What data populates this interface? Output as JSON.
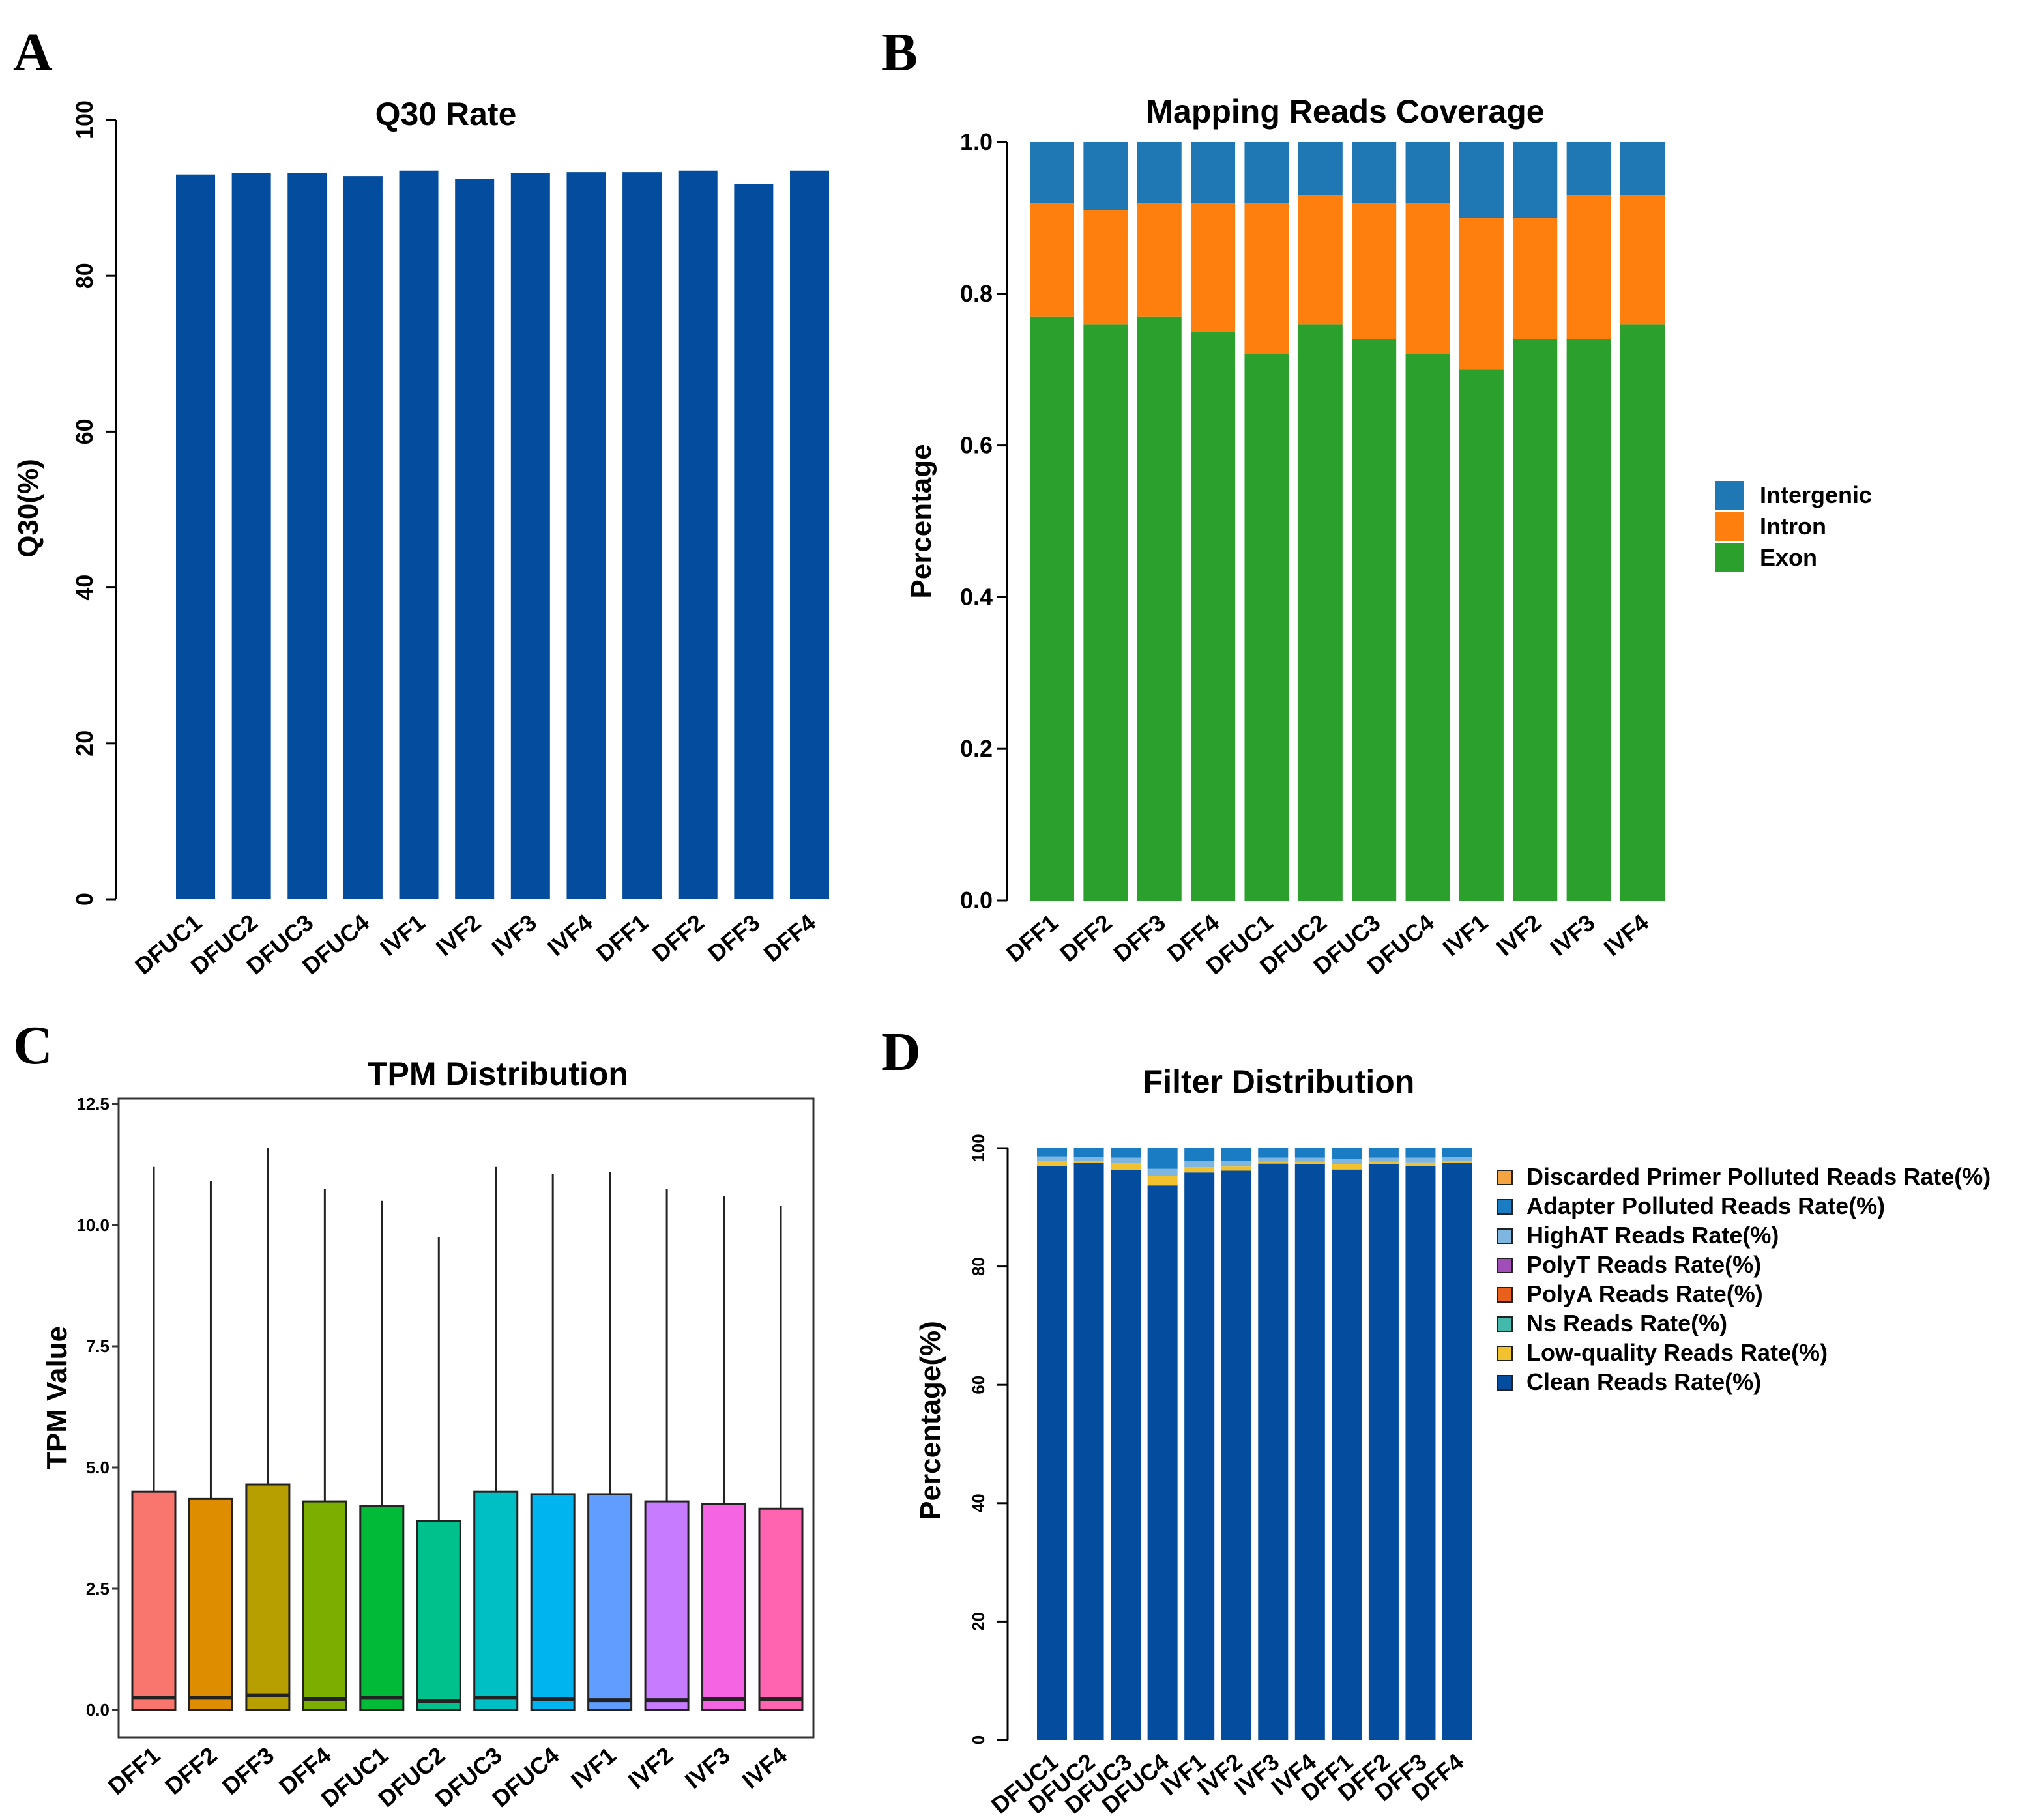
{
  "panels": {
    "a": {
      "letter": "A"
    },
    "b": {
      "letter": "B"
    },
    "c": {
      "letter": "C"
    },
    "d": {
      "letter": "D"
    }
  },
  "chart_data": [
    {
      "id": "q30",
      "type": "bar",
      "title": "Q30 Rate",
      "xlabel": "",
      "ylabel": "Q30(%)",
      "ylim": [
        0,
        100
      ],
      "yticks": [
        "0",
        "20",
        "40",
        "60",
        "80",
        "100"
      ],
      "categories": [
        "DFUC1",
        "DFUC2",
        "DFUC3",
        "DFUC4",
        "IVF1",
        "IVF2",
        "IVF3",
        "IVF4",
        "DFF1",
        "DFF2",
        "DFF3",
        "DFF4"
      ],
      "values": [
        93.0,
        93.2,
        93.2,
        92.8,
        93.5,
        92.4,
        93.2,
        93.3,
        93.3,
        93.5,
        91.8,
        93.5
      ],
      "color": "#034C9E"
    },
    {
      "id": "coverage",
      "type": "bar",
      "stacked": true,
      "title": "Mapping Reads Coverage",
      "xlabel": "",
      "ylabel": "Percentage",
      "ylim": [
        0,
        1
      ],
      "yticks": [
        "0.0",
        "0.2",
        "0.4",
        "0.6",
        "0.8",
        "1.0"
      ],
      "categories": [
        "DFF1",
        "DFF2",
        "DFF3",
        "DFF4",
        "DFUC1",
        "DFUC2",
        "DFUC3",
        "DFUC4",
        "IVF1",
        "IVF2",
        "IVF3",
        "IVF4"
      ],
      "series": [
        {
          "name": "Exon",
          "color": "#2CA02C",
          "values": [
            0.77,
            0.76,
            0.77,
            0.75,
            0.72,
            0.76,
            0.74,
            0.72,
            0.7,
            0.74,
            0.74,
            0.76
          ]
        },
        {
          "name": "Intron",
          "color": "#FF7F0E",
          "values": [
            0.15,
            0.15,
            0.15,
            0.17,
            0.2,
            0.17,
            0.18,
            0.2,
            0.2,
            0.16,
            0.19,
            0.17
          ]
        },
        {
          "name": "Intergenic",
          "color": "#1F77B4",
          "values": [
            0.08,
            0.09,
            0.08,
            0.08,
            0.08,
            0.07,
            0.08,
            0.08,
            0.1,
            0.1,
            0.07,
            0.07
          ]
        }
      ],
      "legend": [
        "Intergenic",
        "Intron",
        "Exon"
      ],
      "legend_position": "right"
    },
    {
      "id": "tpm",
      "type": "box",
      "title": "TPM Distribution",
      "xlabel": "",
      "ylabel": "TPM Value",
      "ylim": [
        0,
        12.5
      ],
      "yticks": [
        "0.0",
        "2.5",
        "5.0",
        "7.5",
        "10.0",
        "12.5"
      ],
      "categories": [
        "DFF1",
        "DFF2",
        "DFF3",
        "DFF4",
        "DFUC1",
        "DFUC2",
        "DFUC3",
        "DFUC4",
        "IVF1",
        "IVF2",
        "IVF3",
        "IVF4"
      ],
      "boxes": [
        {
          "min": 0,
          "q1": 0,
          "median": 0.25,
          "q3": 4.5,
          "max": 11.2,
          "color": "#F8766D"
        },
        {
          "min": 0,
          "q1": 0,
          "median": 0.25,
          "q3": 4.35,
          "max": 10.9,
          "color": "#DE8C00"
        },
        {
          "min": 0,
          "q1": 0,
          "median": 0.3,
          "q3": 4.65,
          "max": 11.6,
          "color": "#B79F00"
        },
        {
          "min": 0,
          "q1": 0,
          "median": 0.22,
          "q3": 4.3,
          "max": 10.75,
          "color": "#7CAE00"
        },
        {
          "min": 0,
          "q1": 0,
          "median": 0.25,
          "q3": 4.2,
          "max": 10.5,
          "color": "#00BA38"
        },
        {
          "min": 0,
          "q1": 0,
          "median": 0.18,
          "q3": 3.9,
          "max": 9.75,
          "color": "#00C08B"
        },
        {
          "min": 0,
          "q1": 0,
          "median": 0.25,
          "q3": 4.5,
          "max": 11.2,
          "color": "#00BFC4"
        },
        {
          "min": 0,
          "q1": 0,
          "median": 0.22,
          "q3": 4.45,
          "max": 11.05,
          "color": "#00B4F0"
        },
        {
          "min": 0,
          "q1": 0,
          "median": 0.2,
          "q3": 4.45,
          "max": 11.1,
          "color": "#619CFF"
        },
        {
          "min": 0,
          "q1": 0,
          "median": 0.2,
          "q3": 4.3,
          "max": 10.75,
          "color": "#C77CFF"
        },
        {
          "min": 0,
          "q1": 0,
          "median": 0.22,
          "q3": 4.25,
          "max": 10.6,
          "color": "#F564E3"
        },
        {
          "min": 0,
          "q1": 0,
          "median": 0.22,
          "q3": 4.15,
          "max": 10.4,
          "color": "#FF64B0"
        }
      ]
    },
    {
      "id": "filter",
      "type": "bar",
      "stacked": true,
      "title": "Filter Distribution",
      "xlabel": "",
      "ylabel": "Percentage(%)",
      "ylim": [
        0,
        100
      ],
      "yticks": [
        "0",
        "20",
        "40",
        "60",
        "80",
        "100"
      ],
      "categories": [
        "DFUC1",
        "DFUC2",
        "DFUC3",
        "DFUC4",
        "IVF1",
        "IVF2",
        "IVF3",
        "IVF4",
        "DFF1",
        "DFF2",
        "DFF3",
        "DFF4"
      ],
      "series": [
        {
          "name": "Clean Reads Rate(%)",
          "color": "#034C9E",
          "values": [
            97.0,
            97.5,
            96.3,
            93.7,
            95.9,
            96.2,
            97.4,
            97.3,
            96.4,
            97.3,
            97.0,
            97.5
          ]
        },
        {
          "name": "Low-quality Reads Rate(%)",
          "color": "#F2C12E",
          "values": [
            0.8,
            0.4,
            1.2,
            1.6,
            0.9,
            0.7,
            0.3,
            0.4,
            0.9,
            0.4,
            0.6,
            0.4
          ]
        },
        {
          "name": "Ns Reads Rate(%)",
          "color": "#45B8AC",
          "values": [
            0.0,
            0.0,
            0.0,
            0.0,
            0.0,
            0.0,
            0.0,
            0.0,
            0.0,
            0.0,
            0.0,
            0.0
          ]
        },
        {
          "name": "PolyA Reads Rate(%)",
          "color": "#E8601C",
          "values": [
            0.0,
            0.0,
            0.0,
            0.0,
            0.0,
            0.0,
            0.0,
            0.0,
            0.0,
            0.0,
            0.0,
            0.0
          ]
        },
        {
          "name": "PolyT Reads Rate(%)",
          "color": "#A14EB8",
          "values": [
            0.0,
            0.0,
            0.0,
            0.0,
            0.0,
            0.0,
            0.0,
            0.0,
            0.0,
            0.0,
            0.0,
            0.0
          ]
        },
        {
          "name": "HighAT Reads Rate(%)",
          "color": "#7FB6E0",
          "values": [
            0.8,
            0.6,
            0.9,
            1.2,
            1.0,
            1.0,
            0.7,
            0.7,
            0.9,
            0.7,
            0.8,
            0.6
          ]
        },
        {
          "name": "Adapter Polluted Reads Rate(%)",
          "color": "#1A7DC4",
          "values": [
            1.4,
            1.5,
            1.6,
            3.5,
            2.2,
            2.1,
            1.6,
            1.6,
            1.8,
            1.6,
            1.6,
            1.5
          ]
        },
        {
          "name": "Discarded Primer Polluted Reads Rate(%)",
          "color": "#F4A441",
          "values": [
            0.0,
            0.0,
            0.0,
            0.0,
            0.0,
            0.0,
            0.0,
            0.0,
            0.0,
            0.0,
            0.0,
            0.0
          ]
        }
      ],
      "legend": [
        "Discarded Primer Polluted Reads Rate(%)",
        "Adapter Polluted Reads Rate(%)",
        "HighAT Reads Rate(%)",
        "PolyT Reads Rate(%)",
        "PolyA Reads Rate(%)",
        "Ns Reads Rate(%)",
        "Low-quality Reads Rate(%)",
        "Clean Reads Rate(%)"
      ],
      "legend_position": "right"
    }
  ]
}
